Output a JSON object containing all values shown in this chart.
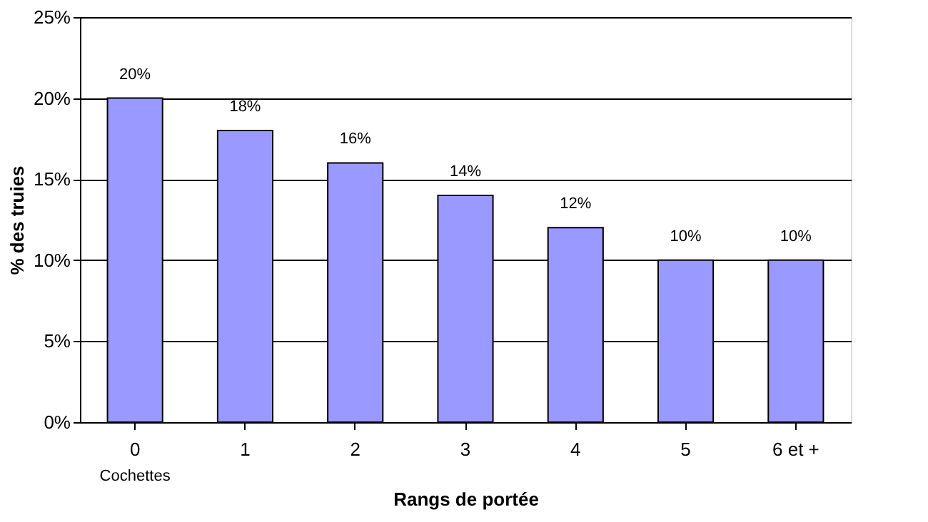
{
  "chart_data": {
    "type": "bar",
    "xlabel": "Rangs de portée",
    "ylabel": "% des truies",
    "categories": [
      "0",
      "1",
      "2",
      "3",
      "4",
      "5",
      "6 et +"
    ],
    "values": [
      20,
      18,
      16,
      14,
      12,
      10,
      10
    ],
    "value_labels": [
      "20%",
      "18%",
      "16%",
      "14%",
      "12%",
      "10%",
      "10%"
    ],
    "color": "#9999ff",
    "ylim": [
      0,
      25
    ],
    "yticks": [
      {
        "value": 0,
        "label": "0%"
      },
      {
        "value": 5,
        "label": "5%"
      },
      {
        "value": 10,
        "label": "10%"
      },
      {
        "value": 15,
        "label": "15%"
      },
      {
        "value": 20,
        "label": "20%"
      },
      {
        "value": 25,
        "label": "25%"
      }
    ],
    "grid": "y",
    "annotations": [
      "Cochettes"
    ]
  }
}
